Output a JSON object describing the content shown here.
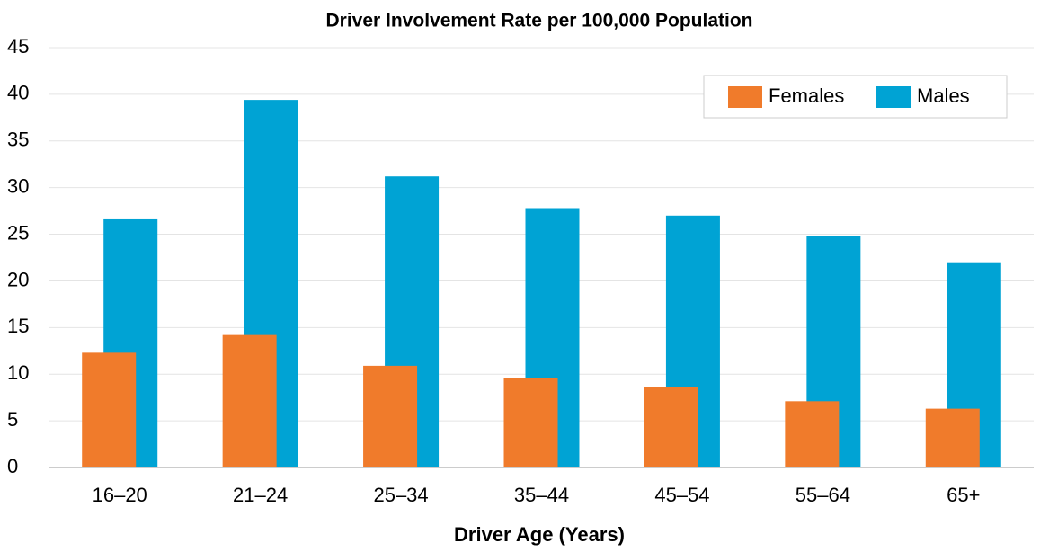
{
  "chart_data": {
    "type": "bar",
    "title": "Driver Involvement Rate per 100,000 Population",
    "x_label": "Driver Age (Years)",
    "categories": [
      "16–20",
      "21–24",
      "25–34",
      "35–44",
      "45–54",
      "55–64",
      "65+"
    ],
    "series": [
      {
        "name": "Females",
        "color": "#f07b2b",
        "values": [
          12.3,
          14.2,
          10.9,
          9.6,
          8.6,
          7.1,
          6.3
        ]
      },
      {
        "name": "Males",
        "color": "#00a3d4",
        "values": [
          26.6,
          39.4,
          31.2,
          27.8,
          27.0,
          24.8,
          22.0
        ]
      }
    ],
    "ylim": [
      0,
      45
    ],
    "yticks": [
      0,
      5,
      10,
      15,
      20,
      25,
      30,
      35,
      40,
      45
    ],
    "grid": true,
    "legend": "top-right"
  }
}
